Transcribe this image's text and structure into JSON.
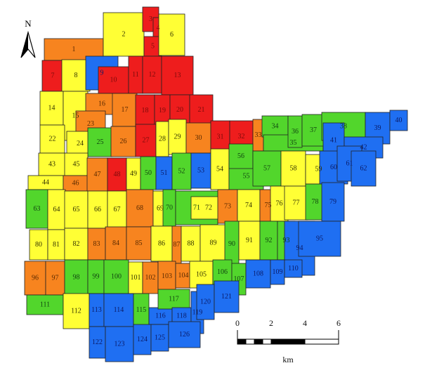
{
  "map": {
    "north_label": "N",
    "scale": {
      "ticks": [
        "0",
        "2",
        "4",
        "6"
      ],
      "unit": "km"
    },
    "colors": {
      "red": "#ee1d1d",
      "orange": "#f7841f",
      "yellow": "#ffff35",
      "green": "#52d62c",
      "blue": "#1f6ff2"
    },
    "zone_colors": {
      "red": [
        3,
        4,
        5,
        7,
        10,
        11,
        12,
        13,
        18,
        19,
        20,
        21,
        27,
        31,
        32,
        48
      ],
      "orange": [
        1,
        16,
        17,
        23,
        26,
        30,
        33,
        46,
        47,
        68,
        73,
        75,
        83,
        84,
        85,
        87,
        96,
        97,
        102,
        103,
        104
      ],
      "yellow": [
        2,
        6,
        8,
        14,
        15,
        22,
        24,
        28,
        29,
        43,
        44,
        45,
        49,
        54,
        58,
        59,
        64,
        65,
        66,
        67,
        69,
        72,
        74,
        76,
        77,
        80,
        81,
        82,
        86,
        88,
        89,
        91,
        101,
        105,
        112
      ],
      "green": [
        25,
        34,
        35,
        36,
        37,
        38,
        50,
        52,
        55,
        56,
        57,
        63,
        70,
        71,
        78,
        90,
        92,
        93,
        98,
        99,
        100,
        106,
        107,
        111,
        115,
        117
      ],
      "blue": [
        9,
        39,
        40,
        41,
        42,
        51,
        53,
        60,
        61,
        62,
        79,
        94,
        95,
        108,
        109,
        110,
        113,
        114,
        116,
        118,
        119,
        120,
        121,
        122,
        123,
        124,
        125,
        126
      ]
    }
  }
}
